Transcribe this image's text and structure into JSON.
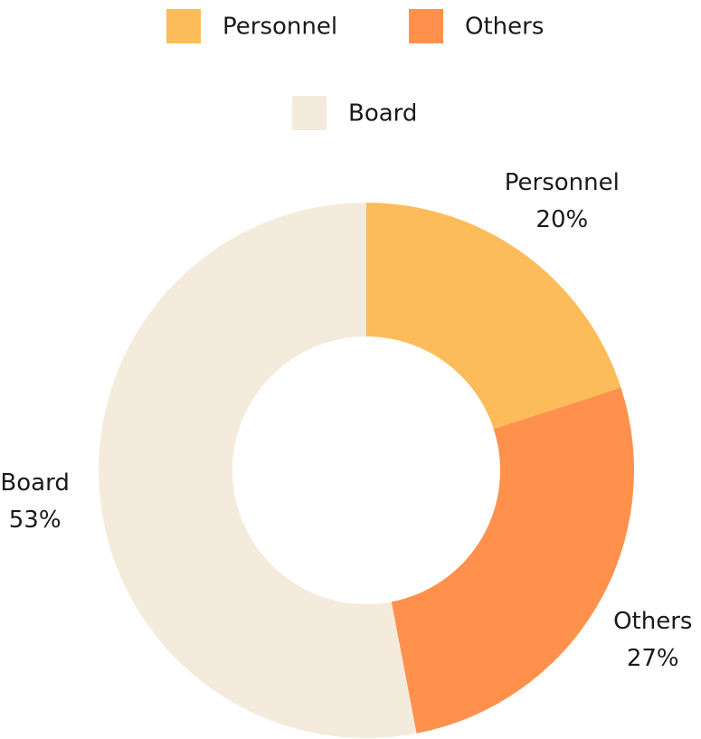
{
  "chart_data": {
    "type": "donut",
    "categories": [
      "Personnel",
      "Others",
      "Board"
    ],
    "values": [
      20,
      27,
      53
    ],
    "value_labels": [
      "20%",
      "27%",
      "53%"
    ],
    "colors": [
      "#fdbc5a",
      "#ff914d",
      "#f5ebdc"
    ]
  }
}
